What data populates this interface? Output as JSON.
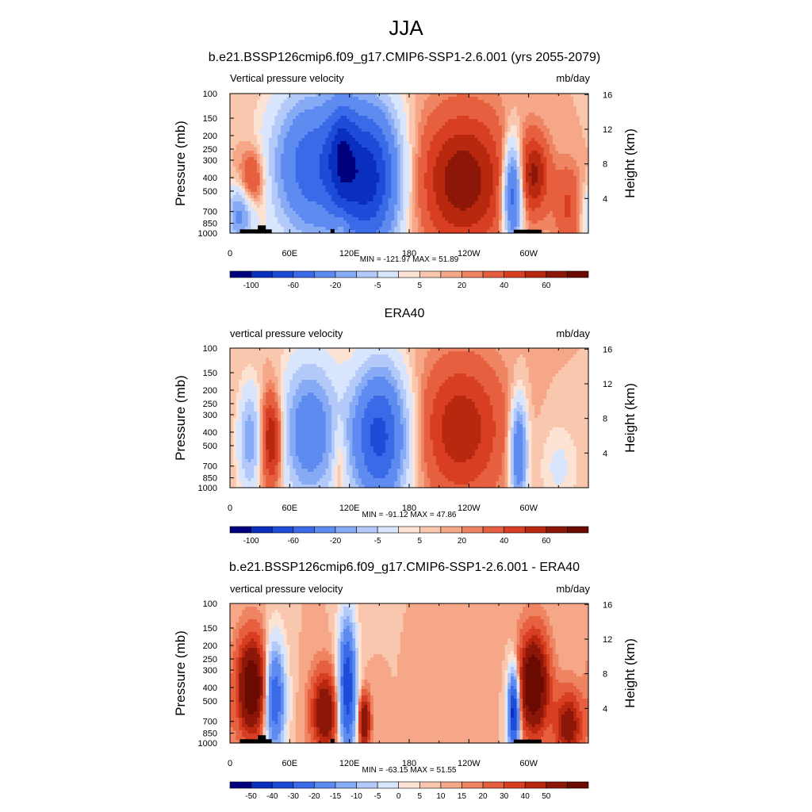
{
  "figure": {
    "title": "JJA"
  },
  "colors": {
    "model_obs_scale": [
      "#00007f",
      "#0a2fbe",
      "#1e4cd9",
      "#3a6ae8",
      "#5e8bf0",
      "#87aaf5",
      "#b3c9f9",
      "#d9e5fc",
      "#fde3d4",
      "#f9c7ae",
      "#f5a788",
      "#ef8462",
      "#e6603f",
      "#d83e22",
      "#b8280f",
      "#8c1608",
      "#6a0a00"
    ],
    "diff_scale": [
      "#00007f",
      "#0a2fbe",
      "#1e4cd9",
      "#3a6ae8",
      "#5e8bf0",
      "#87aaf5",
      "#b3c9f9",
      "#d9e5fc",
      "#fde3d4",
      "#f9c7ae",
      "#f5a788",
      "#ef8462",
      "#e6603f",
      "#d83e22",
      "#b8280f",
      "#8c1608",
      "#6a0a00"
    ],
    "topography": "#000000"
  },
  "chart_data": [
    {
      "type": "heatmap",
      "title": "b.e21.BSSP126cmip6.f09_g17.CMIP6-SSP1-2.6.001 (yrs 2055-2079)",
      "left_label": "Vertical pressure velocity",
      "right_label": "mb/day",
      "ylabel": "Pressure (mb)",
      "ylabel2": "Height (km)",
      "x_ticks": [
        "0",
        "60E",
        "120E",
        "180",
        "120W",
        "60W"
      ],
      "x_tick_lons": [
        0,
        60,
        120,
        180,
        240,
        300
      ],
      "xlim": [
        0,
        360
      ],
      "y_ticks": [
        "100",
        "150",
        "200",
        "250",
        "300",
        "400",
        "500",
        "700",
        "850",
        "1000"
      ],
      "y_tick_values": [
        100,
        150,
        200,
        250,
        300,
        400,
        500,
        700,
        850,
        1000
      ],
      "ylim": [
        1000,
        100
      ],
      "y_scale": "log",
      "y2_ticks": [
        "4",
        "8",
        "12",
        "16"
      ],
      "y2_tick_values": [
        4,
        8,
        12,
        16
      ],
      "stats": "MIN = -121.97  MAX =  51.89",
      "colorbar_labels": [
        "-100",
        "-60",
        "-20",
        "-5",
        "5",
        "20",
        "40",
        "60"
      ],
      "colorbar_levels": [
        -120,
        -100,
        -80,
        -60,
        -40,
        -30,
        -20,
        -10,
        -5,
        0,
        5,
        10,
        20,
        30,
        40,
        50,
        60
      ],
      "scale": "model_obs_scale",
      "features": [
        {
          "lon": 22,
          "p": 420,
          "amp": 32,
          "wl": 9,
          "wp": 0.35
        },
        {
          "lon": 10,
          "p": 740,
          "amp": -45,
          "wl": 10,
          "wp": 0.35
        },
        {
          "lon": 82,
          "p": 330,
          "amp": -72,
          "wl": 28,
          "wp": 0.85
        },
        {
          "lon": 140,
          "p": 400,
          "amp": -105,
          "wl": 22,
          "wp": 0.85
        },
        {
          "lon": 112,
          "p": 260,
          "amp": -48,
          "wl": 10,
          "wp": 0.6
        },
        {
          "lon": 112,
          "p": 900,
          "amp": 18,
          "wl": 4,
          "wp": 0.15
        },
        {
          "lon": 234,
          "p": 420,
          "amp": 48,
          "wl": 32,
          "wp": 0.8
        },
        {
          "lon": 284,
          "p": 520,
          "amp": -80,
          "wl": 7,
          "wp": 0.6
        },
        {
          "lon": 305,
          "p": 380,
          "amp": 40,
          "wl": 11,
          "wp": 0.45
        },
        {
          "lon": 340,
          "p": 650,
          "amp": 22,
          "wl": 10,
          "wp": 0.5
        }
      ],
      "terrain": [
        {
          "lon0": 10,
          "lon1": 42,
          "p": 940
        },
        {
          "lon0": 28,
          "lon1": 36,
          "p": 880
        },
        {
          "lon0": 101,
          "lon1": 105,
          "p": 935
        },
        {
          "lon0": 285,
          "lon1": 313,
          "p": 945
        }
      ]
    },
    {
      "type": "heatmap",
      "title": "ERA40",
      "left_label": "vertical pressure velocity",
      "right_label": "mb/day",
      "ylabel": "Pressure (mb)",
      "ylabel2": "Height (km)",
      "x_ticks": [
        "0",
        "60E",
        "120E",
        "180",
        "120W",
        "60W"
      ],
      "x_tick_lons": [
        0,
        60,
        120,
        180,
        240,
        300
      ],
      "xlim": [
        0,
        360
      ],
      "y_ticks": [
        "100",
        "150",
        "200",
        "250",
        "300",
        "400",
        "500",
        "700",
        "850",
        "1000"
      ],
      "y_tick_values": [
        100,
        150,
        200,
        250,
        300,
        400,
        500,
        700,
        850,
        1000
      ],
      "ylim": [
        1000,
        100
      ],
      "y_scale": "log",
      "y2_ticks": [
        "4",
        "8",
        "12",
        "16"
      ],
      "y2_tick_values": [
        4,
        8,
        12,
        16
      ],
      "stats": "MIN = -91.12  MAX =  47.86",
      "colorbar_labels": [
        "-100",
        "-60",
        "-20",
        "-5",
        "5",
        "20",
        "40",
        "60"
      ],
      "colorbar_levels": [
        -120,
        -100,
        -80,
        -60,
        -40,
        -30,
        -20,
        -10,
        -5,
        0,
        5,
        10,
        20,
        30,
        40,
        50,
        60
      ],
      "scale": "model_obs_scale",
      "features": [
        {
          "lon": 20,
          "p": 450,
          "amp": -38,
          "wl": 8,
          "wp": 0.6
        },
        {
          "lon": 42,
          "p": 450,
          "amp": 48,
          "wl": 8,
          "wp": 0.55
        },
        {
          "lon": 80,
          "p": 400,
          "amp": -55,
          "wl": 20,
          "wp": 0.8
        },
        {
          "lon": 150,
          "p": 430,
          "amp": -88,
          "wl": 20,
          "wp": 0.8
        },
        {
          "lon": 110,
          "p": 600,
          "amp": 20,
          "wl": 5,
          "wp": 0.5
        },
        {
          "lon": 232,
          "p": 380,
          "amp": 38,
          "wl": 30,
          "wp": 0.8
        },
        {
          "lon": 290,
          "p": 560,
          "amp": -65,
          "wl": 6,
          "wp": 0.6
        },
        {
          "lon": 330,
          "p": 700,
          "amp": -12,
          "wl": 14,
          "wp": 0.5
        }
      ],
      "terrain": []
    },
    {
      "type": "heatmap",
      "title": "b.e21.BSSP126cmip6.f09_g17.CMIP6-SSP1-2.6.001 - ERA40",
      "left_label": "vertical pressure velocity",
      "right_label": "mb/day",
      "ylabel": "Pressure (mb)",
      "ylabel2": "Height (km)",
      "x_ticks": [
        "0",
        "60E",
        "120E",
        "180",
        "120W",
        "60W"
      ],
      "x_tick_lons": [
        0,
        60,
        120,
        180,
        240,
        300
      ],
      "xlim": [
        0,
        360
      ],
      "y_ticks": [
        "100",
        "150",
        "200",
        "250",
        "300",
        "400",
        "500",
        "700",
        "850",
        "1000"
      ],
      "y_tick_values": [
        100,
        150,
        200,
        250,
        300,
        400,
        500,
        700,
        850,
        1000
      ],
      "ylim": [
        1000,
        100
      ],
      "y_scale": "log",
      "y2_ticks": [
        "4",
        "8",
        "12",
        "16"
      ],
      "y2_tick_values": [
        4,
        8,
        12,
        16
      ],
      "stats": "MIN = -63.15  MAX =  51.55",
      "colorbar_labels": [
        "-50",
        "-40",
        "-30",
        "-20",
        "-15",
        "-10",
        "-5",
        "0",
        "5",
        "10",
        "15",
        "20",
        "30",
        "40",
        "50"
      ],
      "colorbar_levels": [
        -60,
        -50,
        -40,
        -30,
        -20,
        -15,
        -10,
        -5,
        -2,
        0,
        2,
        5,
        10,
        15,
        20,
        30,
        40
      ],
      "scale": "diff_scale",
      "features": [
        {
          "lon": 22,
          "p": 400,
          "amp": 42,
          "wl": 10,
          "wp": 0.55
        },
        {
          "lon": 45,
          "p": 480,
          "amp": -40,
          "wl": 7,
          "wp": 0.6
        },
        {
          "lon": 95,
          "p": 600,
          "amp": 30,
          "wl": 9,
          "wp": 0.45
        },
        {
          "lon": 118,
          "p": 400,
          "amp": -50,
          "wl": 6,
          "wp": 0.75
        },
        {
          "lon": 135,
          "p": 700,
          "amp": 32,
          "wl": 4,
          "wp": 0.3
        },
        {
          "lon": 285,
          "p": 600,
          "amp": -58,
          "wl": 4,
          "wp": 0.45
        },
        {
          "lon": 305,
          "p": 380,
          "amp": 44,
          "wl": 10,
          "wp": 0.55
        },
        {
          "lon": 340,
          "p": 750,
          "amp": 25,
          "wl": 10,
          "wp": 0.4
        }
      ],
      "terrain": [
        {
          "lon0": 10,
          "lon1": 42,
          "p": 940
        },
        {
          "lon0": 28,
          "lon1": 36,
          "p": 880
        },
        {
          "lon0": 101,
          "lon1": 105,
          "p": 935
        },
        {
          "lon0": 285,
          "lon1": 313,
          "p": 945
        }
      ]
    }
  ]
}
